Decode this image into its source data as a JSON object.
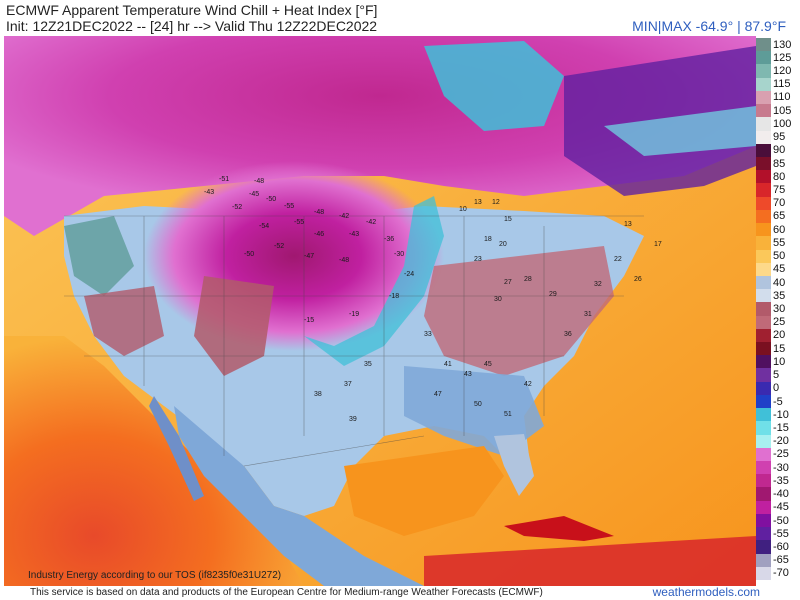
{
  "header": {
    "title": "ECMWF Apparent Temperature Wind Chill + Heat Index [°F]",
    "init_line": "Init: 12Z21DEC2022 -- [24] hr --> Valid Thu 12Z22DEC2022",
    "minmax": "MIN|MAX -64.9° | 87.9°F"
  },
  "map": {
    "tos_note": "Industry Energy according to our TOS (if8235f0e31U272)",
    "point_values": [
      {
        "v": "-51"
      },
      {
        "v": "-48"
      },
      {
        "v": "-43"
      },
      {
        "v": "-45"
      },
      {
        "v": "-50"
      },
      {
        "v": "-52"
      },
      {
        "v": "-55"
      },
      {
        "v": "-48"
      },
      {
        "v": "-42"
      },
      {
        "v": "-55"
      },
      {
        "v": "-54"
      },
      {
        "v": "-46"
      },
      {
        "v": "-52"
      },
      {
        "v": "-50"
      },
      {
        "v": "-47"
      },
      {
        "v": "-48"
      },
      {
        "v": "-43"
      },
      {
        "v": "-42"
      },
      {
        "v": "-36"
      },
      {
        "v": "-30"
      },
      {
        "v": "-24"
      },
      {
        "v": "-18"
      },
      {
        "v": "-19"
      },
      {
        "v": "-15"
      },
      {
        "v": "10"
      },
      {
        "v": "13"
      },
      {
        "v": "12"
      },
      {
        "v": "15"
      },
      {
        "v": "18"
      },
      {
        "v": "20"
      },
      {
        "v": "23"
      },
      {
        "v": "27"
      },
      {
        "v": "28"
      },
      {
        "v": "30"
      },
      {
        "v": "29"
      },
      {
        "v": "33"
      },
      {
        "v": "35"
      },
      {
        "v": "37"
      },
      {
        "v": "38"
      },
      {
        "v": "39"
      },
      {
        "v": "41"
      },
      {
        "v": "43"
      },
      {
        "v": "45"
      },
      {
        "v": "47"
      },
      {
        "v": "50"
      },
      {
        "v": "51"
      },
      {
        "v": "42"
      },
      {
        "v": "36"
      },
      {
        "v": "32"
      },
      {
        "v": "13"
      },
      {
        "v": "17"
      },
      {
        "v": "22"
      },
      {
        "v": "26"
      },
      {
        "v": "31"
      }
    ]
  },
  "colorbar": {
    "stops": [
      {
        "label": "130",
        "color": "#6f8f8a"
      },
      {
        "label": "125",
        "color": "#5e9c98"
      },
      {
        "label": "120",
        "color": "#7fb8b0"
      },
      {
        "label": "115",
        "color": "#a7d4cc"
      },
      {
        "label": "110",
        "color": "#d9a0b0"
      },
      {
        "label": "105",
        "color": "#c77a8e"
      },
      {
        "label": "100",
        "color": "#e6e6e6"
      },
      {
        "label": "95",
        "color": "#f2eded"
      },
      {
        "label": "90",
        "color": "#4a0e3a"
      },
      {
        "label": "85",
        "color": "#7a0f2a"
      },
      {
        "label": "80",
        "color": "#b2102a"
      },
      {
        "label": "75",
        "color": "#d8262a"
      },
      {
        "label": "70",
        "color": "#ee4a2a"
      },
      {
        "label": "65",
        "color": "#f46e20"
      },
      {
        "label": "60",
        "color": "#f7941d"
      },
      {
        "label": "55",
        "color": "#f9b23a"
      },
      {
        "label": "50",
        "color": "#fbc85a"
      },
      {
        "label": "45",
        "color": "#fdd98a"
      },
      {
        "label": "40",
        "color": "#b0c4de"
      },
      {
        "label": "35",
        "color": "#d2ddec"
      },
      {
        "label": "30",
        "color": "#b25a6a"
      },
      {
        "label": "25",
        "color": "#c06a78"
      },
      {
        "label": "20",
        "color": "#a02030"
      },
      {
        "label": "15",
        "color": "#7a1020"
      },
      {
        "label": "10",
        "color": "#501060"
      },
      {
        "label": "5",
        "color": "#7030a0"
      },
      {
        "label": "0",
        "color": "#3a2ab0"
      },
      {
        "label": "-5",
        "color": "#2040c8"
      },
      {
        "label": "-10",
        "color": "#40c0d8"
      },
      {
        "label": "-15",
        "color": "#70e0e8"
      },
      {
        "label": "-20",
        "color": "#a8f0f0"
      },
      {
        "label": "-25",
        "color": "#e070d0"
      },
      {
        "label": "-30",
        "color": "#d040b0"
      },
      {
        "label": "-35",
        "color": "#c02890"
      },
      {
        "label": "-40",
        "color": "#a01870"
      },
      {
        "label": "-45",
        "color": "#c020a0"
      },
      {
        "label": "-50",
        "color": "#8010a0"
      },
      {
        "label": "-55",
        "color": "#6020a0"
      },
      {
        "label": "-60",
        "color": "#402080"
      },
      {
        "label": "-65",
        "color": "#a0a0c0"
      },
      {
        "label": "-70",
        "color": "#d8d8e8"
      }
    ]
  },
  "footer": {
    "disclaimer": "This service is based on data and products of the European Centre for Medium-range Weather Forecasts (ECMWF)",
    "brand": "weathermodels.com"
  },
  "colors": {
    "brand": "#2f5fbf",
    "cold_core": "#d020a0",
    "warm_ocean": "#f7941d",
    "cool_land": "#a8c8e8",
    "cold_front": "#40c0d8"
  }
}
